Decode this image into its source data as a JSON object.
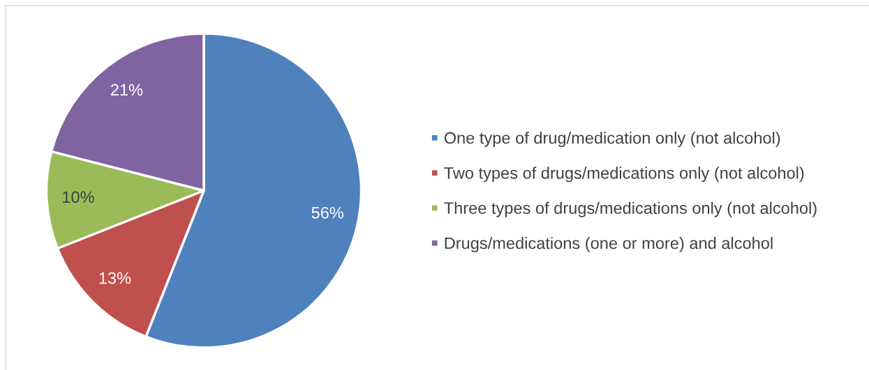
{
  "chart_data": {
    "type": "pie",
    "categories": [
      "One type of drug/medication only (not alcohol)",
      "Two types of drugs/medications only (not alcohol)",
      "Three types of drugs/medications only (not alcohol)",
      "Drugs/medications (one or more) and alcohol"
    ],
    "values": [
      56,
      13,
      10,
      21
    ],
    "colors": [
      "#4f81bd",
      "#c0504d",
      "#9bbb59",
      "#8064a2"
    ],
    "value_labels": [
      "56%",
      "13%",
      "10%",
      "21%"
    ],
    "legend": "right"
  }
}
